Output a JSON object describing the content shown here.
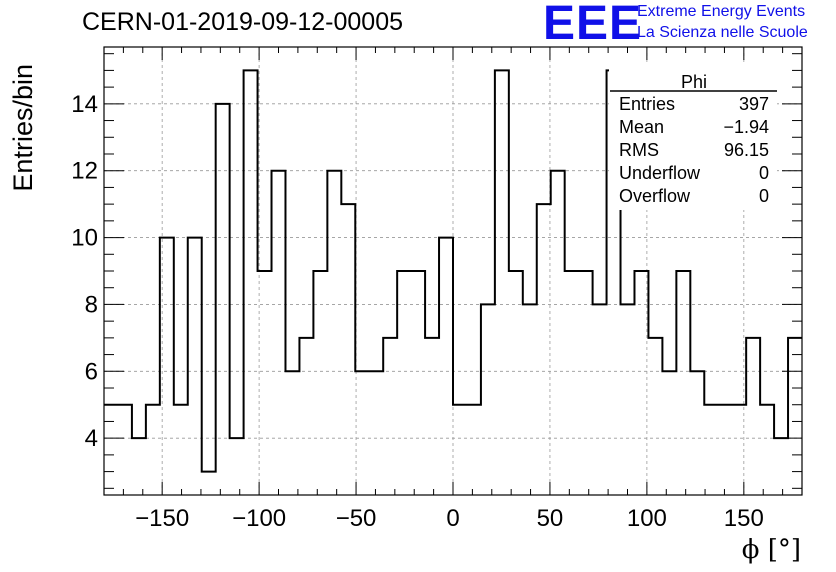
{
  "header": {
    "title": "CERN-01-2019-09-12-00005",
    "logo_text": "EEE",
    "logo_line1": "Extreme Energy Events",
    "logo_line2": "La Scienza nelle Scuole",
    "logo_color": "#1010e8"
  },
  "stats": {
    "name": "Phi",
    "rows": [
      {
        "label": "Entries",
        "value": "397"
      },
      {
        "label": "Mean",
        "value": "−1.94"
      },
      {
        "label": "RMS",
        "value": "96.15"
      },
      {
        "label": "Underflow",
        "value": "0"
      },
      {
        "label": "Overflow",
        "value": "0"
      }
    ]
  },
  "chart_data": {
    "type": "histogram",
    "xlabel": "ϕ [°]",
    "ylabel": "Entries/bin",
    "xlim": [
      -180,
      180
    ],
    "ylim": [
      2.3,
      15.7
    ],
    "bin_width": 7.2,
    "bin_edges_start": -180,
    "values": [
      5,
      5,
      4,
      5,
      10,
      5,
      10,
      3,
      14,
      4,
      15,
      9,
      12,
      6,
      7,
      9,
      12,
      11,
      6,
      6,
      7,
      9,
      9,
      7,
      10,
      5,
      5,
      8,
      15,
      9,
      8,
      11,
      12,
      9,
      9,
      8,
      15,
      8,
      9,
      7,
      6,
      9,
      6,
      5,
      5,
      5,
      7,
      5,
      4,
      7
    ],
    "xticks": [
      -150,
      -100,
      -50,
      0,
      50,
      100,
      150
    ],
    "yticks": [
      4,
      6,
      8,
      10,
      12,
      14
    ],
    "grid": true,
    "line_color": "#000000"
  }
}
